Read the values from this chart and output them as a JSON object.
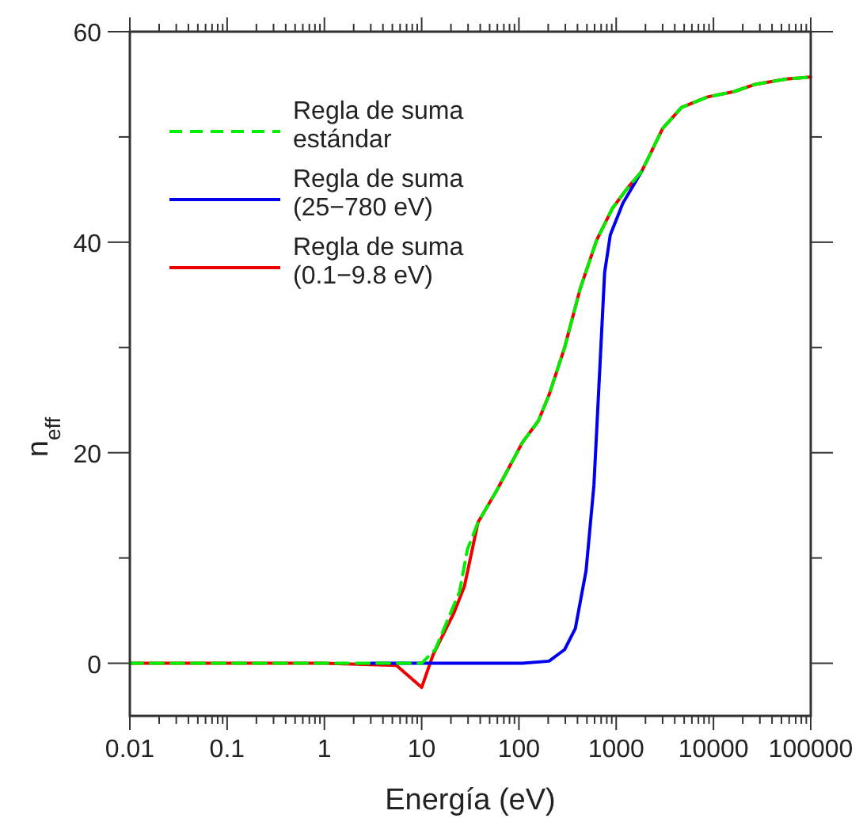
{
  "chart_data": {
    "type": "line",
    "xlabel": "Energía (eV)",
    "ylabel": "n$_{eff}$",
    "log": "x",
    "xlim": [
      0.01,
      100000
    ],
    "ylim": [
      -5,
      60
    ],
    "xticks": [
      0.01,
      {
        "value": 0.02,
        "label": null
      },
      {
        "value": 0.03,
        "label": null
      },
      {
        "value": 0.04,
        "label": null
      },
      {
        "value": 0.05,
        "label": null
      },
      {
        "value": 0.06,
        "label": null
      },
      {
        "value": 0.07,
        "label": null
      },
      {
        "value": 0.08,
        "label": null
      },
      {
        "value": 0.09,
        "label": null
      },
      0.1,
      {
        "value": 0.2,
        "label": null
      },
      {
        "value": 0.3,
        "label": null
      },
      {
        "value": 0.4,
        "label": null
      },
      {
        "value": 0.5,
        "label": null
      },
      {
        "value": 0.6,
        "label": null
      },
      {
        "value": 0.7,
        "label": null
      },
      {
        "value": 0.8,
        "label": null
      },
      {
        "value": 0.9,
        "label": null
      },
      1,
      {
        "value": 2,
        "label": null
      },
      {
        "value": 3,
        "label": null
      },
      {
        "value": 4,
        "label": null
      },
      {
        "value": 5,
        "label": null
      },
      {
        "value": 6,
        "label": null
      },
      {
        "value": 7,
        "label": null
      },
      {
        "value": 8,
        "label": null
      },
      {
        "value": 9,
        "label": null
      },
      10,
      {
        "value": 20,
        "label": null
      },
      {
        "value": 30,
        "label": null
      },
      {
        "value": 40,
        "label": null
      },
      {
        "value": 50,
        "label": null
      },
      {
        "value": 60,
        "label": null
      },
      {
        "value": 70,
        "label": null
      },
      {
        "value": 80,
        "label": null
      },
      {
        "value": 90,
        "label": null
      },
      100,
      {
        "value": 200,
        "label": null
      },
      {
        "value": 300,
        "label": null
      },
      {
        "value": 400,
        "label": null
      },
      {
        "value": 500,
        "label": null
      },
      {
        "value": 600,
        "label": null
      },
      {
        "value": 700,
        "label": null
      },
      {
        "value": 800,
        "label": null
      },
      {
        "value": 900,
        "label": null
      },
      1000,
      {
        "value": 2000,
        "label": null
      },
      {
        "value": 3000,
        "label": null
      },
      {
        "value": 4000,
        "label": null
      },
      {
        "value": 5000,
        "label": null
      },
      {
        "value": 6000,
        "label": null
      },
      {
        "value": 7000,
        "label": null
      },
      {
        "value": 8000,
        "label": null
      },
      {
        "value": 9000,
        "label": null
      },
      10000,
      {
        "value": 20000,
        "label": null
      },
      {
        "value": 30000,
        "label": null
      },
      {
        "value": 40000,
        "label": null
      },
      {
        "value": 50000,
        "label": null
      },
      {
        "value": 60000,
        "label": null
      },
      {
        "value": 70000,
        "label": null
      },
      {
        "value": 80000,
        "label": null
      },
      {
        "value": 90000,
        "label": null
      },
      100000
    ],
    "yticks": [
      0,
      {
        "value": 10,
        "label": null
      },
      20,
      {
        "value": 30,
        "label": null
      },
      40,
      {
        "value": 50,
        "label": null
      },
      60
    ],
    "grid": false,
    "legend": "top left",
    "series": [
      {
        "name": "Regla de suma estándar",
        "color": "#00ee00",
        "line_style": "dashed",
        "x": [
          0.01,
          1,
          5,
          10,
          13.8,
          24.5,
          29.5,
          38,
          59,
          109,
          158,
          204,
          295,
          427,
          630,
          912,
          1320,
          1820,
          2190,
          3000,
          4700,
          8700,
          16200,
          27000,
          56000,
          100000
        ],
        "values": [
          0,
          0,
          0,
          0,
          1.3,
          6.8,
          10.8,
          13.4,
          16.4,
          21,
          23,
          25.5,
          30,
          35.6,
          40.2,
          43.2,
          45.2,
          46.7,
          48.2,
          50.8,
          52.8,
          53.8,
          54.3,
          55,
          55.5,
          55.7
        ]
      },
      {
        "name": "Regla de suma (25−780 eV)",
        "color": "#0000ee",
        "line_style": "solid",
        "x": [
          3,
          10,
          109,
          204,
          295,
          380,
          490,
          590,
          670,
          760,
          870,
          1170,
          1820
        ],
        "values": [
          0,
          0,
          0,
          0.2,
          1.3,
          3.3,
          8.8,
          16.9,
          27,
          37.1,
          40.7,
          43.7,
          46.7
        ]
      },
      {
        "name": "Regla de suma (0.1−9.8 eV)",
        "color": "#ee0000",
        "line_style": "solid",
        "x": [
          0.01,
          1,
          5.5,
          10,
          13.1,
          21.5,
          27.5,
          38,
          59,
          109,
          158,
          204,
          295,
          427,
          630,
          912,
          1320,
          1820,
          2190,
          3000,
          4700,
          8700,
          16200,
          27000,
          56000,
          100000
        ],
        "values": [
          0,
          0,
          -0.2,
          -2.3,
          0.8,
          4.8,
          7.3,
          13.4,
          16.4,
          21,
          23,
          25.5,
          30,
          35.6,
          40.2,
          43.2,
          45.2,
          46.7,
          48.2,
          50.8,
          52.8,
          53.8,
          54.3,
          55,
          55.5,
          55.7
        ]
      }
    ]
  }
}
